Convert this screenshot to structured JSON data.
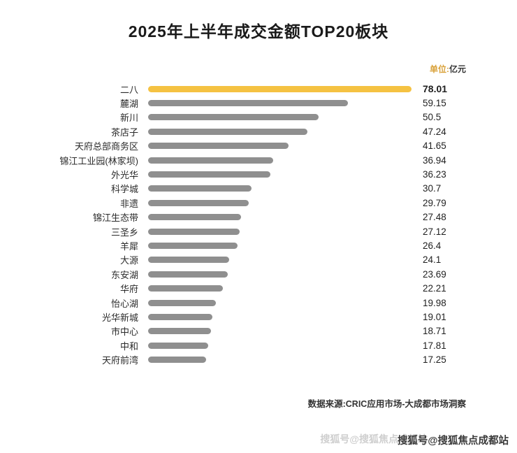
{
  "title": "2025年上半年成交金额TOP20板块",
  "unit": {
    "prefix": "单位:",
    "suffix": "亿元"
  },
  "source": "数据来源:CRIC应用市场-大成都市场洞察",
  "watermark": {
    "main": "搜狐号@搜狐焦点成都站",
    "ghost": "搜狐号@搜狐焦点成都站"
  },
  "colors": {
    "highlight": "#F5C242",
    "bar": "#8F8F8F"
  },
  "chart_data": {
    "type": "bar",
    "orientation": "horizontal",
    "title": "2025年上半年成交金额TOP20板块",
    "unit": "亿元",
    "categories": [
      "二八",
      "麓湖",
      "新川",
      "茶店子",
      "天府总部商务区",
      "锦江工业园(林家坝)",
      "外光华",
      "科学城",
      "非遗",
      "锦江生态带",
      "三圣乡",
      "羊犀",
      "大源",
      "东安湖",
      "华府",
      "怡心湖",
      "光华新城",
      "市中心",
      "中和",
      "天府前湾"
    ],
    "values": [
      78.01,
      59.15,
      50.5,
      47.24,
      41.65,
      36.94,
      36.23,
      30.7,
      29.79,
      27.48,
      27.12,
      26.4,
      24.1,
      23.69,
      22.21,
      19.98,
      19.01,
      18.71,
      17.81,
      17.25
    ],
    "value_labels": [
      "78.01",
      "59.15",
      "50.5",
      "47.24",
      "41.65",
      "36.94",
      "36.23",
      "30.7",
      "29.79",
      "27.48",
      "27.12",
      "26.4",
      "24.1",
      "23.69",
      "22.21",
      "19.98",
      "19.01",
      "18.71",
      "17.81",
      "17.25"
    ],
    "highlight_index": 0,
    "xlim": [
      0,
      78.01
    ],
    "grid": false,
    "legend": false,
    "source": "数据来源:CRIC应用市场-大成都市场洞察"
  }
}
